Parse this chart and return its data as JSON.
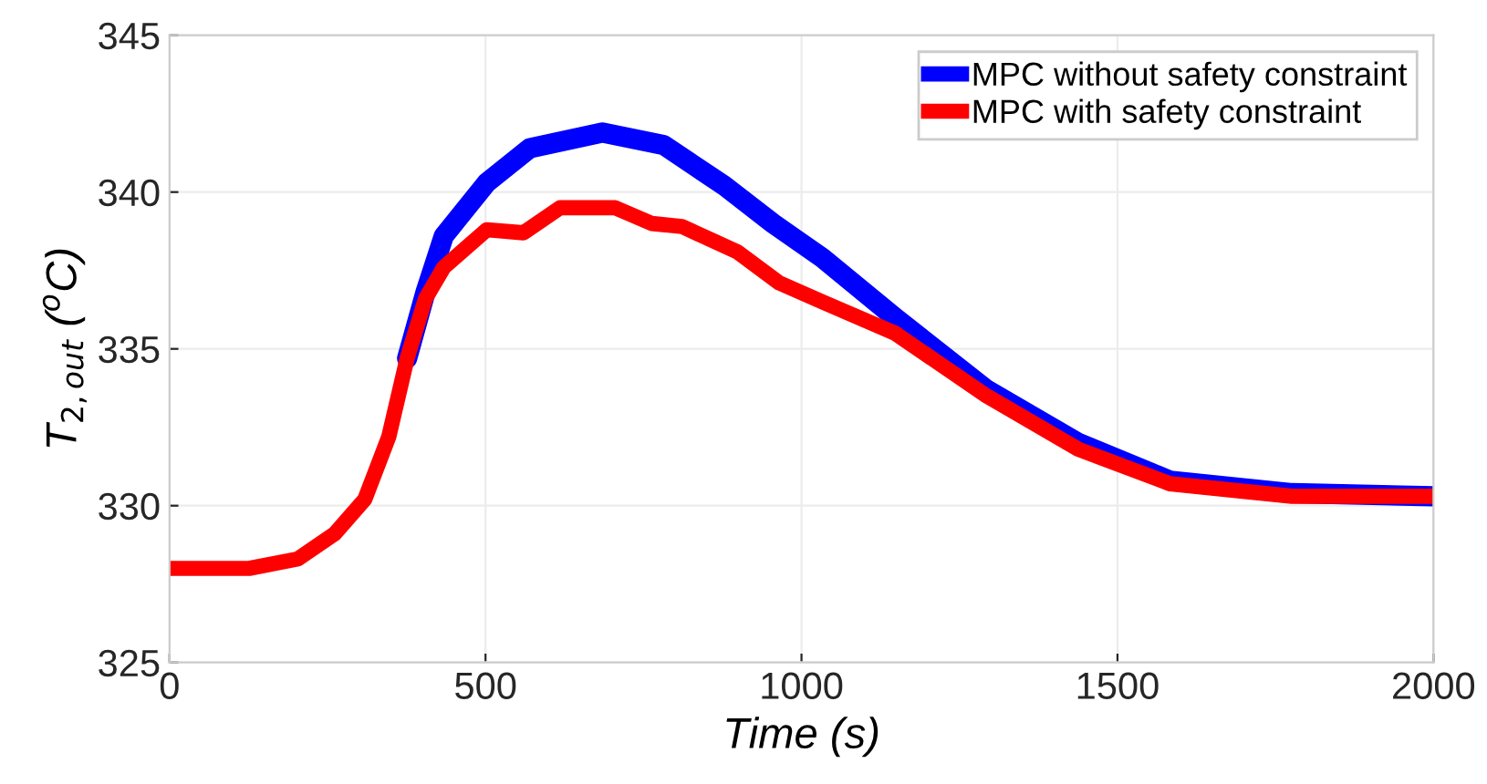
{
  "chart_data": {
    "type": "line",
    "xlabel": "Time (s)",
    "ylabel": "T$_{2,out}$ ($^{o}$C)",
    "xlim": [
      0,
      2000
    ],
    "ylim": [
      325,
      345
    ],
    "xticks": [
      0,
      500,
      1000,
      1500,
      2000
    ],
    "yticks": [
      325,
      330,
      335,
      340,
      345
    ],
    "grid": true,
    "legend": "top right",
    "line_style": "solid",
    "marker": "none",
    "series": [
      {
        "name": "MPC without safety constraint",
        "color": "#0000ff",
        "x": [
          376,
          405,
          434,
          502,
          570,
          685,
          782,
          878,
          955,
          1033,
          1148,
          1293,
          1438,
          1583,
          1776,
          2000
        ],
        "values": [
          334.7,
          336.8,
          338.6,
          340.3,
          341.4,
          341.9,
          341.5,
          340.2,
          339.0,
          337.9,
          336.0,
          333.7,
          332.0,
          330.8,
          330.4,
          330.3
        ]
      },
      {
        "name": "MPC with safety constraint",
        "color": "#ff0000",
        "x": [
          0,
          126,
          203,
          261,
          309,
          347,
          376,
          405,
          434,
          502,
          560,
          618,
          705,
          763,
          811,
          898,
          965,
          1033,
          1148,
          1293,
          1438,
          1583,
          1776,
          2000
        ],
        "values": [
          328,
          328,
          328.3,
          329.1,
          330.2,
          332.2,
          334.7,
          336.6,
          337.6,
          338.8,
          338.7,
          339.5,
          339.5,
          339.0,
          338.9,
          338.1,
          337.1,
          336.5,
          335.5,
          333.5,
          331.8,
          330.7,
          330.3,
          330.3
        ]
      }
    ]
  }
}
